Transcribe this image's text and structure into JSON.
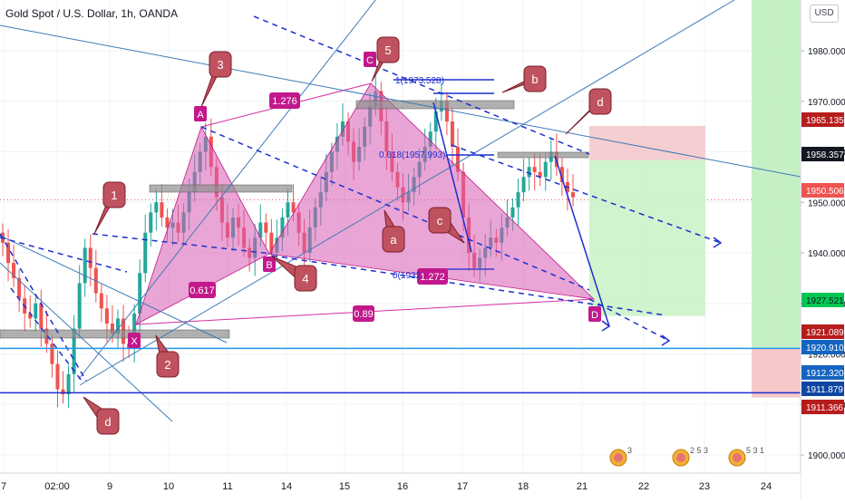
{
  "header": {
    "symbol_title": "Gold Spot / U.S. Dollar, 1h, OANDA",
    "currency": "USD"
  },
  "chart_data": {
    "type": "candlestick",
    "symbol": "Gold Spot / U.S. Dollar",
    "interval": "1h",
    "source": "OANDA",
    "ylim": [
      1893,
      1997
    ],
    "y_ticks": [
      1900,
      1910,
      1920,
      1930,
      1940,
      1950,
      1960,
      1970,
      1980
    ],
    "y_tick_labels": [
      "1900.000",
      "1910.000",
      "1920.000",
      "1930.000",
      "1940.000",
      "1950.000",
      "1960.000",
      "1970.000",
      "1980.000"
    ],
    "x_ticks": [
      "7",
      "02:00",
      "9",
      "10",
      "11",
      "14",
      "15",
      "16",
      "17",
      "18",
      "21",
      "22",
      "23",
      "24"
    ],
    "close_series": [
      1942,
      1938,
      1935,
      1931,
      1928,
      1927,
      1930,
      1925,
      1922,
      1918,
      1913,
      1912,
      1916,
      1925,
      1934,
      1941,
      1937,
      1932,
      1929,
      1926,
      1924,
      1927,
      1922,
      1921,
      1928,
      1936,
      1944,
      1948,
      1950,
      1947,
      1945,
      1946,
      1944,
      1948,
      1952,
      1956,
      1960,
      1963,
      1957,
      1951,
      1946,
      1943,
      1947,
      1945,
      1941,
      1939,
      1943,
      1946,
      1944,
      1940,
      1943,
      1947,
      1950,
      1948,
      1944,
      1940,
      1945,
      1949,
      1952,
      1956,
      1960,
      1963,
      1966,
      1962,
      1958,
      1961,
      1965,
      1969,
      1972,
      1966,
      1960,
      1956,
      1953,
      1950,
      1952,
      1955,
      1958,
      1961,
      1964,
      1968,
      1970,
      1966,
      1961,
      1956,
      1947,
      1940,
      1937,
      1939,
      1941,
      1943,
      1942,
      1945,
      1947,
      1949,
      1952,
      1955,
      1957,
      1956,
      1955,
      1958,
      1960,
      1957,
      1954,
      1952,
      1951
    ],
    "price_labels": [
      {
        "value": 1965.135,
        "label": "1965.135",
        "color": "#b71c1c"
      },
      {
        "value": 1958.357,
        "label": "1958.357",
        "color": "#131722"
      },
      {
        "value": 1950.506,
        "label": "1950.506",
        "color": "#ef5350"
      },
      {
        "value": 1927.521,
        "label": "1927.521",
        "color": "#00c853",
        "text_color": "#131722"
      },
      {
        "value": 1921.089,
        "label": "1921.089",
        "color": "#b71c1c"
      },
      {
        "value": 1920.91,
        "label": "1920.910",
        "color": "#1565c0"
      },
      {
        "value": 1912.32,
        "label": "1912.320",
        "color": "#1565c0"
      },
      {
        "value": 1911.879,
        "label": "1911.879",
        "color": "#0d47a1"
      },
      {
        "value": 1911.366,
        "label": "1911.366",
        "color": "#b71c1c"
      }
    ],
    "annotations": {
      "points": [
        "X",
        "A",
        "B",
        "C",
        "D"
      ],
      "ratios": [
        "1.276",
        "0.617",
        "1.272",
        "0.89"
      ],
      "fib_labels": [
        "1(1973.528)",
        "0.618(1957.993)",
        "0(1932"
      ],
      "balloons": [
        "1",
        "2",
        "3",
        "4",
        "5",
        "a",
        "b",
        "c",
        "d",
        "d"
      ]
    },
    "event_badges": [
      "3",
      "2 5 3",
      "5 3 1"
    ]
  }
}
